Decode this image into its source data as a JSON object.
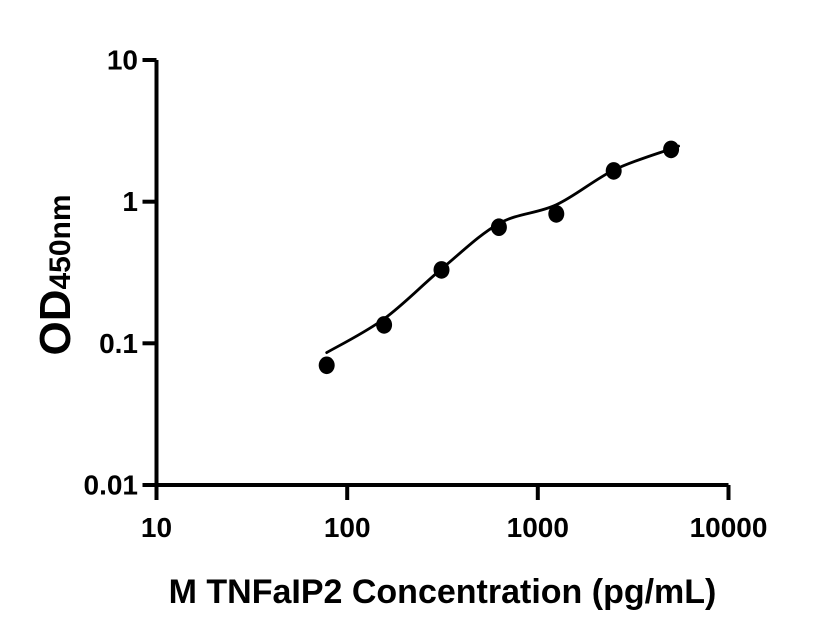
{
  "chart_data": {
    "type": "scatter",
    "title": "",
    "xlabel": "M TNFaIP2 Concentration (pg/mL)",
    "ylabel_main": "OD",
    "ylabel_sub": "450nm",
    "x_scale": "log",
    "y_scale": "log",
    "xlim": [
      10,
      10000
    ],
    "ylim": [
      0.01,
      10
    ],
    "grid": false,
    "legend": null,
    "axis_color": "#000000",
    "x_ticks": [
      {
        "value": 10,
        "label": "10"
      },
      {
        "value": 100,
        "label": "100"
      },
      {
        "value": 1000,
        "label": "1000"
      },
      {
        "value": 10000,
        "label": "10000"
      }
    ],
    "y_ticks": [
      {
        "value": 10,
        "label": "10"
      },
      {
        "value": 1,
        "label": "1"
      },
      {
        "value": 0.1,
        "label": "0.1"
      },
      {
        "value": 0.01,
        "label": "0.01"
      }
    ],
    "series": [
      {
        "name": "standard-points",
        "marker": "filled-circle",
        "color": "#000000",
        "points": [
          {
            "x": 78.125,
            "y": 0.07
          },
          {
            "x": 156.25,
            "y": 0.135
          },
          {
            "x": 312.5,
            "y": 0.33
          },
          {
            "x": 625,
            "y": 0.66
          },
          {
            "x": 1250,
            "y": 0.82
          },
          {
            "x": 2500,
            "y": 1.65
          },
          {
            "x": 5000,
            "y": 2.34
          }
        ]
      }
    ],
    "fit_curve": {
      "name": "standard-curve-fit",
      "color": "#000000",
      "points": [
        {
          "x": 78.125,
          "y": 0.086
        },
        {
          "x": 156.25,
          "y": 0.149
        },
        {
          "x": 312.5,
          "y": 0.335
        },
        {
          "x": 625,
          "y": 0.7
        },
        {
          "x": 1250,
          "y": 0.95
        },
        {
          "x": 2500,
          "y": 1.67
        },
        {
          "x": 5000,
          "y": 2.36
        }
      ]
    }
  }
}
